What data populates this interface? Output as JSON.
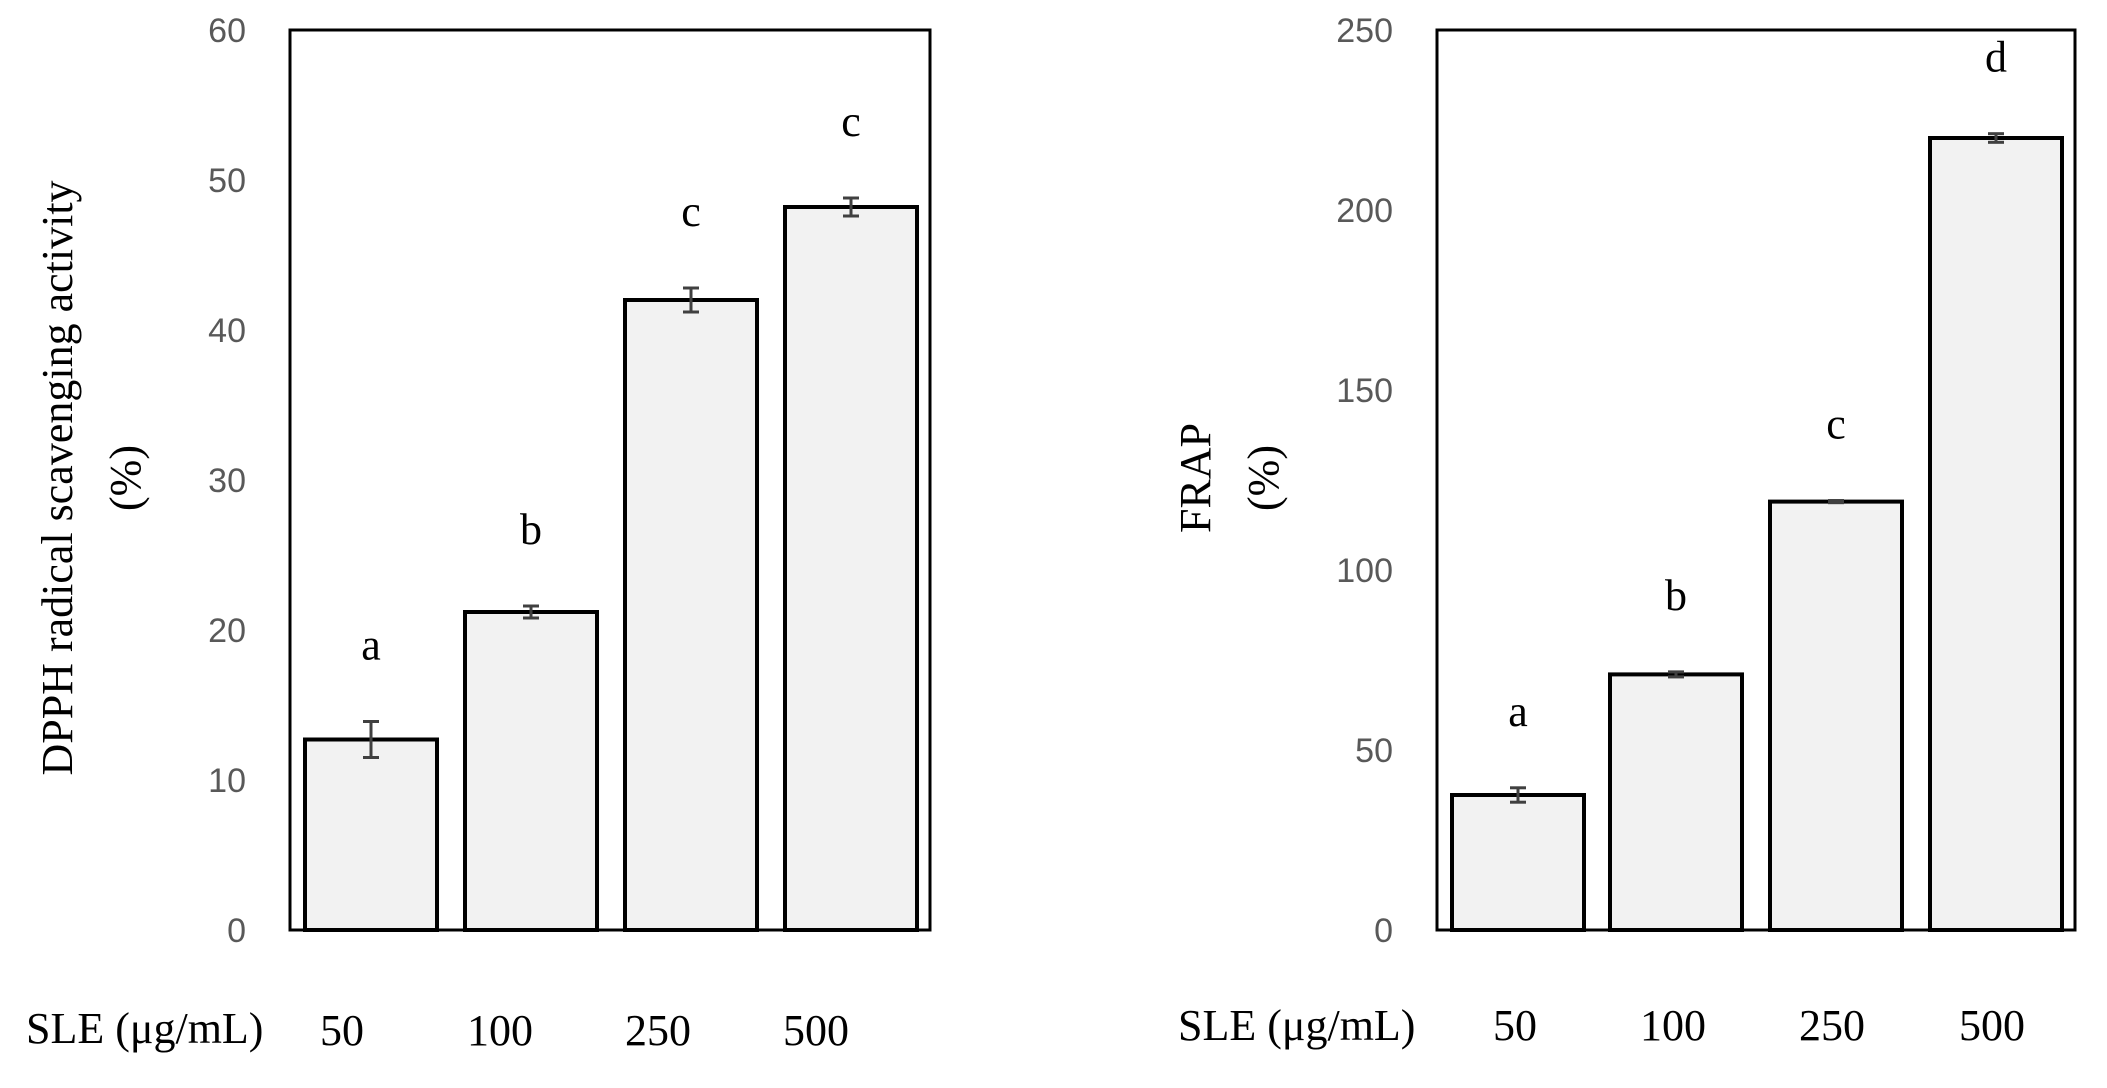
{
  "chart_data": [
    {
      "type": "bar",
      "ylabel": "DPPH radical scavenging activity",
      "ylabel_unit": "(%)",
      "xlabel": "SLE (μg/mL)",
      "categories": [
        "50",
        "100",
        "250",
        "500"
      ],
      "values": [
        12.7,
        21.2,
        42.0,
        48.2
      ],
      "errors": [
        1.2,
        0.4,
        0.8,
        0.6
      ],
      "significance": [
        "a",
        "b",
        "c",
        "c"
      ],
      "ylim": [
        0,
        60
      ],
      "yticks": [
        0,
        10,
        20,
        30,
        40,
        50,
        60
      ],
      "ytick_labels": [
        "0",
        "10",
        "20",
        "30",
        "40",
        "50",
        "60"
      ],
      "bar_color": "#f2f2f2"
    },
    {
      "type": "bar",
      "ylabel": "FRAP",
      "ylabel_unit": "(%)",
      "xlabel": "SLE (μg/mL)",
      "categories": [
        "50",
        "100",
        "250",
        "500"
      ],
      "values": [
        37.5,
        71.0,
        119.0,
        220.0
      ],
      "errors": [
        2.0,
        0.7,
        0.3,
        1.2
      ],
      "significance": [
        "a",
        "b",
        "c",
        "d"
      ],
      "ylim": [
        0,
        250
      ],
      "yticks": [
        0,
        50,
        100,
        150,
        200,
        250
      ],
      "ytick_labels": [
        "0",
        "50",
        "100",
        "150",
        "200",
        "250"
      ],
      "bar_color": "#f2f2f2"
    }
  ]
}
